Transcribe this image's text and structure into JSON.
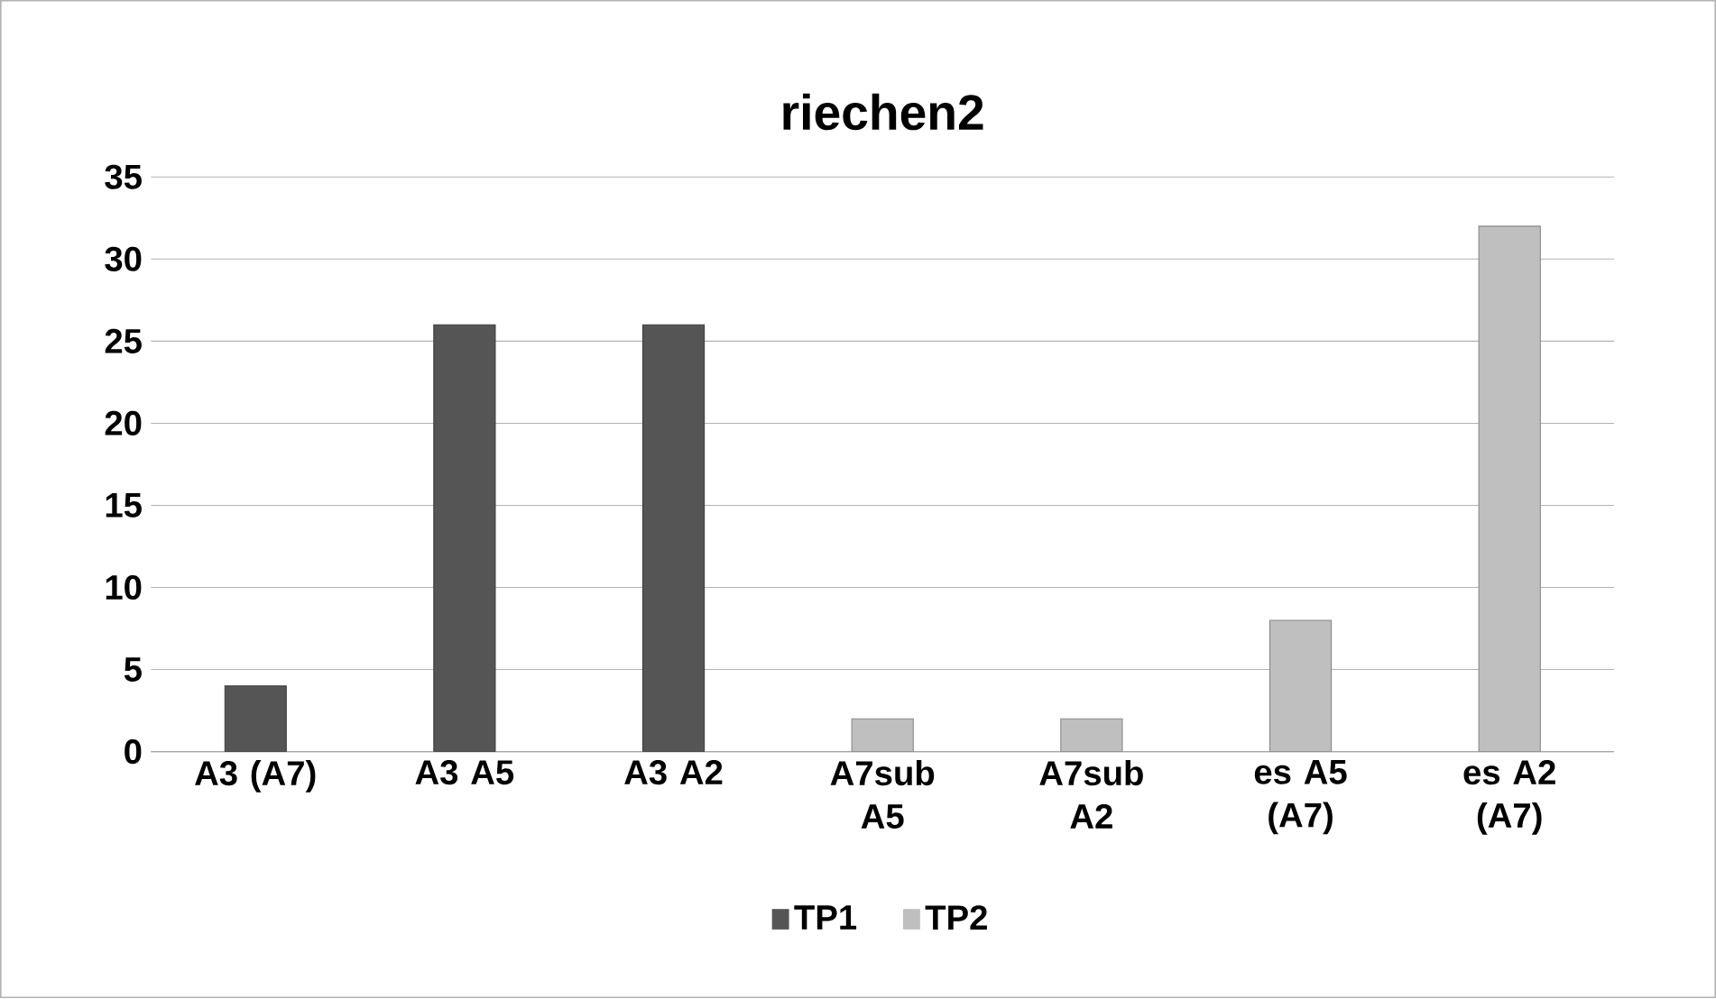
{
  "chart_data": {
    "type": "bar",
    "title": "riechen2",
    "categories": [
      "A3 (A7)",
      "A3 A5",
      "A3 A2",
      "A7sub A5",
      "A7sub A2",
      "es A5 (A7)",
      "es A2 (A7)"
    ],
    "series": [
      {
        "name": "TP1",
        "color": "#555555",
        "values": [
          4,
          26,
          26,
          null,
          null,
          null,
          null
        ]
      },
      {
        "name": "TP2",
        "color": "#bfbfbf",
        "values": [
          null,
          null,
          null,
          2,
          2,
          8,
          32
        ]
      }
    ],
    "ylim": [
      0,
      35
    ],
    "yticks": [
      0,
      5,
      10,
      15,
      20,
      25,
      30,
      35
    ],
    "grid": "y",
    "legend": "bottom"
  }
}
